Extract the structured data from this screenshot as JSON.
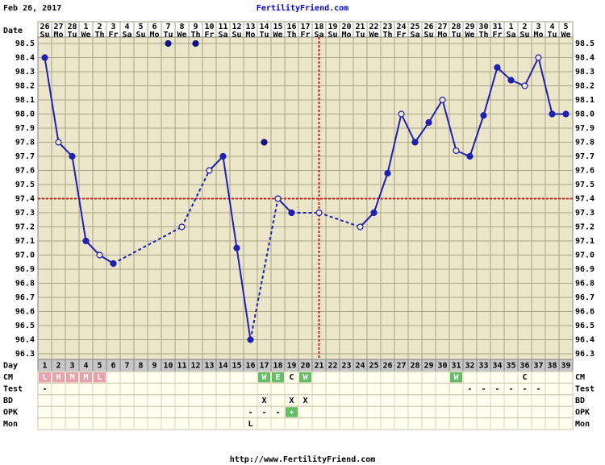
{
  "chart_data": {
    "type": "line",
    "date_label": "Feb 26, 2017",
    "title": "FertilityFriend.com",
    "footer": "http://www.FertilityFriend.com",
    "date_row_label": "Date",
    "day_row_label": "Day",
    "dates": [
      26,
      27,
      28,
      1,
      2,
      3,
      4,
      5,
      6,
      7,
      8,
      9,
      10,
      11,
      12,
      13,
      14,
      15,
      16,
      17,
      18,
      19,
      20,
      21,
      22,
      23,
      24,
      25,
      26,
      27,
      28,
      29,
      30,
      31,
      1,
      2,
      3,
      4,
      5
    ],
    "weekdays": [
      "Su",
      "Mo",
      "Tu",
      "We",
      "Th",
      "Fr",
      "Sa",
      "Su",
      "Mo",
      "Tu",
      "We",
      "Th",
      "Fr",
      "Sa",
      "Su",
      "Mo",
      "Tu",
      "We",
      "Th",
      "Fr",
      "Sa",
      "Su",
      "Mo",
      "Tu",
      "We",
      "Th",
      "Fr",
      "Sa",
      "Su",
      "Mo",
      "Tu",
      "We",
      "Th",
      "Fr",
      "Sa",
      "Su",
      "Mo",
      "Tu",
      "We"
    ],
    "categories": [
      1,
      2,
      3,
      4,
      5,
      6,
      7,
      8,
      9,
      10,
      11,
      12,
      13,
      14,
      15,
      16,
      17,
      18,
      19,
      20,
      21,
      22,
      23,
      24,
      25,
      26,
      27,
      28,
      29,
      30,
      31,
      32,
      33,
      34,
      35,
      36,
      37,
      38,
      39
    ],
    "series": [
      {
        "color": "#2020b0",
        "connected": true,
        "values": [
          98.4,
          97.8,
          97.7,
          97.1,
          97.0,
          96.94,
          null,
          null,
          null,
          null,
          97.2,
          null,
          97.6,
          97.7,
          97.05,
          96.4,
          null,
          97.4,
          97.3,
          null,
          97.3,
          null,
          null,
          97.2,
          97.3,
          97.58,
          98.0,
          97.8,
          97.94,
          98.1,
          97.74,
          97.7,
          97.99,
          98.33,
          98.24,
          98.2,
          98.4,
          98.0,
          98.0
        ],
        "hollow": [
          false,
          true,
          false,
          false,
          true,
          false,
          false,
          false,
          false,
          false,
          true,
          false,
          true,
          false,
          false,
          false,
          false,
          true,
          false,
          false,
          true,
          false,
          false,
          true,
          false,
          false,
          true,
          false,
          false,
          true,
          true,
          false,
          false,
          false,
          false,
          true,
          true,
          false,
          false
        ]
      },
      {
        "color": "#101080",
        "connected": false,
        "values": [
          null,
          null,
          null,
          null,
          null,
          null,
          null,
          null,
          null,
          98.5,
          null,
          98.5,
          null,
          null,
          null,
          null,
          97.8,
          null,
          null,
          null,
          null,
          null,
          null,
          null,
          null,
          null,
          null,
          null,
          null,
          null,
          null,
          null,
          null,
          null,
          null,
          null,
          null,
          null,
          null
        ]
      }
    ],
    "ylim": [
      96.3,
      98.5
    ],
    "yticks": [
      96.3,
      96.4,
      96.5,
      96.6,
      96.7,
      96.8,
      96.9,
      {
        "value": 97,
        "label": "97.0"
      },
      97.1,
      97.2,
      97.3,
      97.4,
      97.5,
      97.6,
      97.7,
      97.8,
      97.9,
      {
        "value": 98,
        "label": "98.0"
      },
      98.1,
      98.2,
      98.3,
      98.4,
      98.5
    ],
    "grid": true,
    "coverline": 97.4,
    "ovulation_day": 21,
    "marker_line_color": "#cc2222",
    "rows": [
      {
        "label": "CM",
        "cells": [
          "L",
          "H",
          "M",
          "M",
          "L",
          null,
          null,
          null,
          null,
          null,
          null,
          null,
          null,
          null,
          null,
          null,
          "W",
          "E",
          "C",
          "W",
          null,
          null,
          null,
          null,
          null,
          null,
          null,
          null,
          null,
          null,
          "W",
          null,
          null,
          null,
          null,
          "C",
          null,
          null,
          null
        ],
        "highlight": [
          "#e8a0aa",
          "#e8a0aa",
          "#e8a0aa",
          "#e8a0aa",
          "#e8a0aa",
          null,
          null,
          null,
          null,
          null,
          null,
          null,
          null,
          null,
          null,
          null,
          "#66bb66",
          "#66bb66",
          null,
          "#66bb66",
          null,
          null,
          null,
          null,
          null,
          null,
          null,
          null,
          null,
          null,
          "#66bb66",
          null,
          null,
          null,
          null,
          null,
          null,
          null,
          null
        ]
      },
      {
        "label": "Test",
        "cells": [
          "-",
          null,
          null,
          null,
          null,
          null,
          null,
          null,
          null,
          null,
          null,
          null,
          null,
          null,
          null,
          null,
          null,
          null,
          null,
          null,
          null,
          null,
          null,
          null,
          null,
          null,
          null,
          null,
          null,
          null,
          null,
          "-",
          "-",
          "-",
          "-",
          "-",
          "-",
          null,
          null
        ]
      },
      {
        "label": "BD",
        "cells": [
          null,
          null,
          null,
          null,
          null,
          null,
          null,
          null,
          null,
          null,
          null,
          null,
          null,
          null,
          null,
          null,
          "X",
          null,
          "X",
          "X",
          null,
          null,
          null,
          null,
          null,
          null,
          null,
          null,
          null,
          null,
          null,
          null,
          null,
          null,
          null,
          null,
          null,
          null,
          null
        ]
      },
      {
        "label": "OPK",
        "cells": [
          null,
          null,
          null,
          null,
          null,
          null,
          null,
          null,
          null,
          null,
          null,
          null,
          null,
          null,
          null,
          "-",
          "-",
          "-",
          "+",
          null,
          null,
          null,
          null,
          null,
          null,
          null,
          null,
          null,
          null,
          null,
          null,
          null,
          null,
          null,
          null,
          null,
          null,
          null,
          null
        ],
        "highlight": [
          null,
          null,
          null,
          null,
          null,
          null,
          null,
          null,
          null,
          null,
          null,
          null,
          null,
          null,
          null,
          null,
          null,
          null,
          "#66bb66",
          null,
          null,
          null,
          null,
          null,
          null,
          null,
          null,
          null,
          null,
          null,
          null,
          null,
          null,
          null,
          null,
          null,
          null,
          null,
          null
        ]
      },
      {
        "label": "Mon",
        "cells": [
          null,
          null,
          null,
          null,
          null,
          null,
          null,
          null,
          null,
          null,
          null,
          null,
          null,
          null,
          null,
          "L",
          null,
          null,
          null,
          null,
          null,
          null,
          null,
          null,
          null,
          null,
          null,
          null,
          null,
          null,
          null,
          null,
          null,
          null,
          null,
          null,
          null,
          null,
          null
        ]
      }
    ]
  }
}
